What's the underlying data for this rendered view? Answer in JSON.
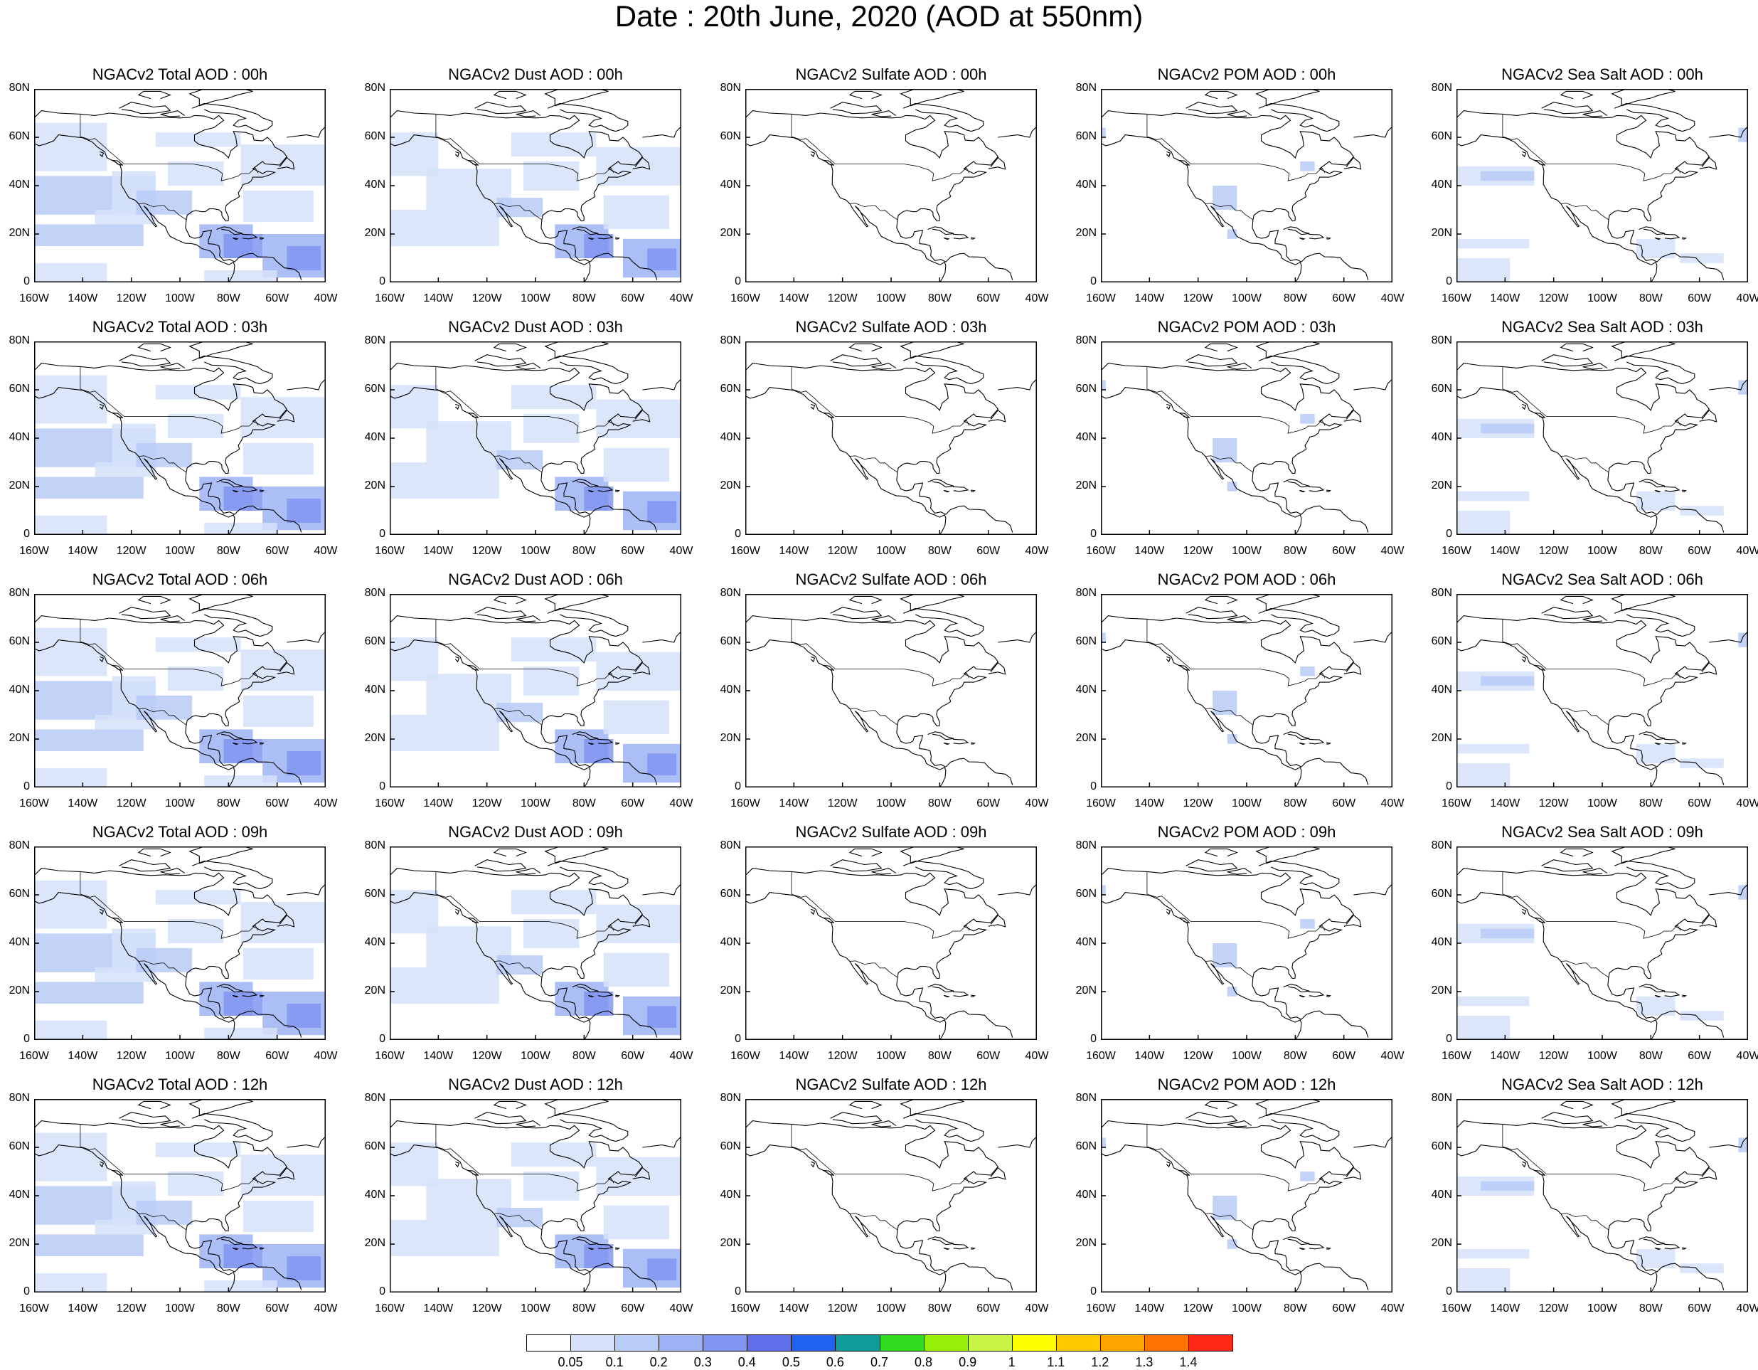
{
  "figure": {
    "title": "Date : 20th June, 2020 (AOD at 550nm)"
  },
  "panels": [
    [
      {
        "title": "NGACv2 Total AOD : 00h",
        "species": "total"
      },
      {
        "title": "NGACv2 Dust AOD : 00h",
        "species": "dust"
      },
      {
        "title": "NGACv2 Sulfate AOD : 00h",
        "species": "sulfate"
      },
      {
        "title": "NGACv2 POM AOD : 00h",
        "species": "pom"
      },
      {
        "title": "NGACv2 Sea Salt AOD : 00h",
        "species": "seasalt"
      }
    ],
    [
      {
        "title": "NGACv2 Total AOD : 03h",
        "species": "total"
      },
      {
        "title": "NGACv2 Dust AOD : 03h",
        "species": "dust"
      },
      {
        "title": "NGACv2 Sulfate AOD : 03h",
        "species": "sulfate"
      },
      {
        "title": "NGACv2 POM AOD : 03h",
        "species": "pom"
      },
      {
        "title": "NGACv2 Sea Salt AOD : 03h",
        "species": "seasalt"
      }
    ],
    [
      {
        "title": "NGACv2 Total AOD : 06h",
        "species": "total"
      },
      {
        "title": "NGACv2 Dust AOD : 06h",
        "species": "dust"
      },
      {
        "title": "NGACv2 Sulfate AOD : 06h",
        "species": "sulfate"
      },
      {
        "title": "NGACv2 POM AOD : 06h",
        "species": "pom"
      },
      {
        "title": "NGACv2 Sea Salt AOD : 06h",
        "species": "seasalt"
      }
    ],
    [
      {
        "title": "NGACv2 Total AOD : 09h",
        "species": "total"
      },
      {
        "title": "NGACv2 Dust AOD : 09h",
        "species": "dust"
      },
      {
        "title": "NGACv2 Sulfate AOD : 09h",
        "species": "sulfate"
      },
      {
        "title": "NGACv2 POM AOD : 09h",
        "species": "pom"
      },
      {
        "title": "NGACv2 Sea Salt  AOD : 09h",
        "species": "seasalt"
      }
    ],
    [
      {
        "title": "NGACv2 Total AOD  : 12h",
        "species": "total"
      },
      {
        "title": "NGACv2 Dust AOD : 12h",
        "species": "dust"
      },
      {
        "title": "NGACv2 Sulfate AOD : 12h",
        "species": "sulfate"
      },
      {
        "title": "NGACv2 POM  AOD : 12h",
        "species": "pom"
      },
      {
        "title": "NGACv2 Sea Salt  AOD : 12h",
        "species": "seasalt"
      }
    ]
  ],
  "axes": {
    "lat_labels": [
      "80N",
      "60N",
      "40N",
      "20N",
      "0"
    ],
    "lon_labels": [
      "160W",
      "140W",
      "120W",
      "100W",
      "80W",
      "60W",
      "40W"
    ],
    "lat_range": [
      0,
      80
    ],
    "lon_range": [
      -160,
      -40
    ]
  },
  "legend": {
    "labels": [
      "0.05",
      "0.1",
      "0.2",
      "0.3",
      "0.4",
      "0.5",
      "0.6",
      "0.7",
      "0.8",
      "0.9",
      "1",
      "1.1",
      "1.2",
      "1.3",
      "1.4"
    ],
    "colors": [
      "#ffffff",
      "#d6e2fa",
      "#b9cbf7",
      "#9db3f5",
      "#8095f1",
      "#6070ec",
      "#1e64f0",
      "#119a9a",
      "#32dc1e",
      "#96f00a",
      "#c8f546",
      "#ffff00",
      "#ffc800",
      "#ffa500",
      "#ff7300",
      "#ff2814"
    ]
  }
}
